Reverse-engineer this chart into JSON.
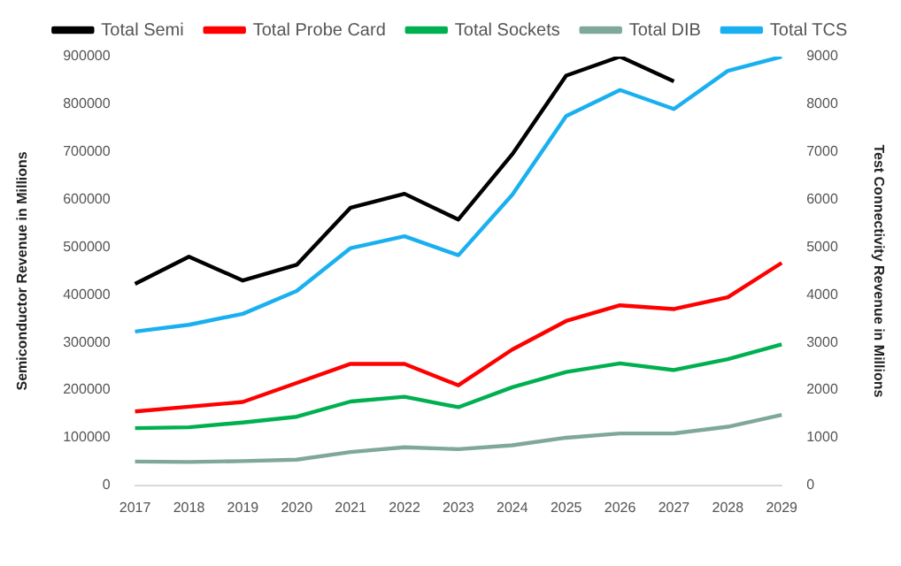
{
  "chart_data": {
    "type": "line",
    "ylabel": "Semiconductor Revenue in Millions",
    "y2label": "Test Connectivity Revenue in Millions",
    "categories": [
      "2017",
      "2018",
      "2019",
      "2020",
      "2021",
      "2022",
      "2023",
      "2024",
      "2025",
      "2026",
      "2027",
      "2028",
      "2029"
    ],
    "series": [
      {
        "name": "Total Semi",
        "color": "#000000",
        "values": [
          423000,
          480000,
          430000,
          463000,
          583000,
          612000,
          558000,
          695000,
          860000,
          900000,
          848000,
          null,
          null
        ]
      },
      {
        "name": "Total Probe Card",
        "color": "#ff0000",
        "axis": "y2",
        "values": [
          1550,
          1650,
          1750,
          2150,
          2550,
          2550,
          2100,
          2850,
          3450,
          3780,
          3700,
          3950,
          4670
        ]
      },
      {
        "name": "Total Sockets",
        "color": "#00b050",
        "axis": "y2",
        "values": [
          1200,
          1220,
          1320,
          1440,
          1760,
          1860,
          1640,
          2060,
          2380,
          2560,
          2420,
          2650,
          2960
        ]
      },
      {
        "name": "Total DIB",
        "color": "#7fa89a",
        "axis": "y2",
        "values": [
          500,
          490,
          510,
          540,
          700,
          800,
          760,
          840,
          1000,
          1090,
          1090,
          1230,
          1480
        ]
      },
      {
        "name": "Total TCS",
        "color": "#1ab0f0",
        "axis": "y2",
        "values": [
          3230,
          3370,
          3600,
          4080,
          4980,
          5230,
          4830,
          6100,
          7750,
          8300,
          7900,
          8700,
          9000
        ]
      }
    ],
    "ylim": [
      0,
      900000
    ],
    "yticks": [
      0,
      100000,
      200000,
      300000,
      400000,
      500000,
      600000,
      700000,
      800000,
      900000
    ],
    "y2lim": [
      0,
      9000
    ],
    "y2ticks": [
      0,
      1000,
      2000,
      3000,
      4000,
      5000,
      6000,
      7000,
      8000,
      9000
    ],
    "grid": false,
    "legend": "top",
    "marker": "none",
    "line_style": "solid"
  }
}
